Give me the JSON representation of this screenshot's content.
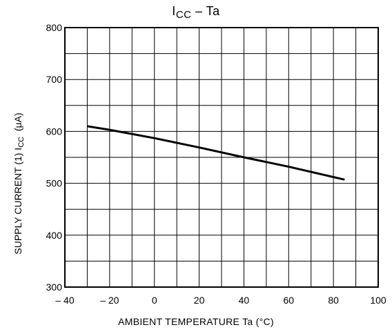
{
  "chart_data": {
    "type": "line",
    "title": "ICC – Ta",
    "title_main": "I",
    "title_sub": "CC",
    "title_rest": " – Ta",
    "xlabel": "AMBIENT TEMPERATURE   Ta   (°C)",
    "ylabel_main": "SUPPLY CURRENT (1)  I",
    "ylabel_sub": "CC",
    "ylabel_unit": "(μA)",
    "xlim": [
      -40,
      100
    ],
    "ylim": [
      300,
      800
    ],
    "x_ticks": [
      -40,
      -20,
      0,
      20,
      40,
      60,
      80,
      100
    ],
    "x_tick_labels": [
      "– 40",
      "– 20",
      "0",
      "20",
      "40",
      "60",
      "80",
      "100"
    ],
    "y_ticks": [
      300,
      400,
      500,
      600,
      700,
      800
    ],
    "y_tick_labels": [
      "300",
      "400",
      "500",
      "600",
      "700",
      "800"
    ],
    "grid": true,
    "x_grid_step": 10,
    "y_grid_step": 50,
    "series": [
      {
        "x": [
          -30,
          -20,
          0,
          20,
          40,
          60,
          85
        ],
        "values": [
          610,
          603,
          587,
          569,
          550,
          532,
          507
        ]
      }
    ]
  }
}
